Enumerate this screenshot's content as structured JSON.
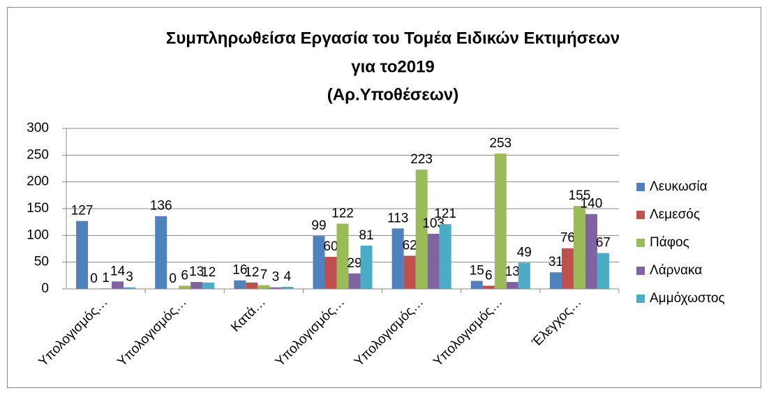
{
  "chart_data": {
    "type": "bar",
    "title": [
      "Συμπληρωθείσα Εργασία του Τομέα Ειδικών Εκτιμήσεων",
      "για το2019",
      "(Αρ.Υποθέσεων)"
    ],
    "categories": [
      "Υπολογισμός…",
      "Υπολογισμός…",
      "Κατά…",
      "Υπολογισμός…",
      "Υπολογισμός…",
      "Υπολογισμός…",
      "Έλεγχος…"
    ],
    "series": [
      {
        "name": "Λευκωσία",
        "color": "#4f81bd",
        "values": [
          127,
          136,
          16,
          99,
          113,
          15,
          31
        ]
      },
      {
        "name": "Λεμεσός",
        "color": "#c0504d",
        "values": [
          0,
          0,
          12,
          60,
          62,
          6,
          76
        ]
      },
      {
        "name": "Πάφος",
        "color": "#9bbb59",
        "values": [
          1,
          6,
          7,
          122,
          223,
          253,
          155
        ]
      },
      {
        "name": "Λάρνακα",
        "color": "#8064a2",
        "values": [
          14,
          13,
          3,
          29,
          103,
          13,
          140
        ]
      },
      {
        "name": "Αμμόχωστος",
        "color": "#4bacc6",
        "values": [
          3,
          12,
          4,
          81,
          121,
          49,
          67
        ]
      }
    ],
    "ylim": [
      0,
      300
    ],
    "yticks": [
      0,
      50,
      100,
      150,
      200,
      250,
      300
    ],
    "grid": true,
    "legend": "right"
  }
}
